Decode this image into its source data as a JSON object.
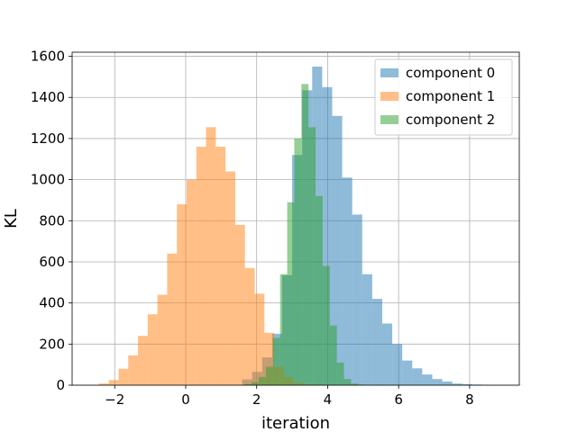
{
  "chart_data": {
    "type": "histogram",
    "xlabel": "iteration",
    "ylabel": "KL",
    "xlim": [
      -3.2,
      9.4
    ],
    "ylim": [
      0,
      1620
    ],
    "xticks": [
      -2,
      0,
      2,
      4,
      6,
      8
    ],
    "yticks": [
      0,
      200,
      400,
      600,
      800,
      1000,
      1200,
      1400,
      1600
    ],
    "grid": true,
    "legend_position": "top-right",
    "series": [
      {
        "name": "component 0",
        "color": "#1f77b4",
        "bin_start": 1.59,
        "bin_width": 0.282,
        "counts": [
          28,
          65,
          135,
          250,
          535,
          1120,
          1435,
          1550,
          1450,
          1310,
          1010,
          830,
          540,
          420,
          300,
          200,
          120,
          82,
          52,
          30,
          18,
          8,
          5,
          3,
          2,
          1,
          1,
          1
        ]
      },
      {
        "name": "component 1",
        "color": "#ff7f0e",
        "bin_start": -2.44,
        "bin_width": 0.274,
        "counts": [
          8,
          25,
          80,
          145,
          240,
          345,
          440,
          640,
          880,
          1000,
          1160,
          1255,
          1160,
          1040,
          780,
          570,
          445,
          255,
          90,
          40,
          12,
          5
        ]
      },
      {
        "name": "component 2",
        "color": "#2ca02c",
        "bin_start": 1.66,
        "bin_width": 0.2,
        "counts": [
          5,
          15,
          40,
          90,
          230,
          540,
          890,
          1200,
          1465,
          1255,
          920,
          580,
          290,
          110,
          30,
          8,
          3
        ]
      }
    ]
  }
}
